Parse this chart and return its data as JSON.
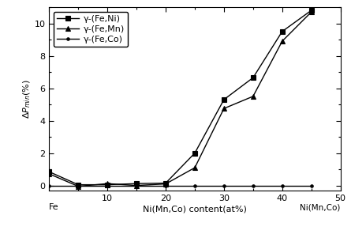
{
  "series": [
    {
      "label": "γ-(Fe,Ni)",
      "marker": "s",
      "x": [
        0,
        5,
        10,
        15,
        20,
        25,
        30,
        35,
        40,
        45
      ],
      "y": [
        0.85,
        0.05,
        0.05,
        0.12,
        0.15,
        2.0,
        5.3,
        6.65,
        9.5,
        10.8
      ]
    },
    {
      "label": "γ-(Fe,Mn)",
      "marker": "^",
      "x": [
        0,
        5,
        10,
        15,
        20,
        25,
        30,
        35,
        40,
        45
      ],
      "y": [
        0.72,
        -0.05,
        0.12,
        0.0,
        0.1,
        1.1,
        4.75,
        5.5,
        8.9,
        10.7
      ]
    },
    {
      "label": "γ-(Fe,Co)",
      "marker": ".",
      "x": [
        0,
        5,
        10,
        15,
        20,
        25,
        30,
        35,
        40,
        45
      ],
      "y": [
        0.0,
        0.0,
        0.0,
        0.0,
        0.0,
        0.0,
        0.0,
        0.0,
        0.0,
        0.0
      ]
    }
  ],
  "xlabel": "Ni(Mn,Co) content(at%)",
  "xlim": [
    0,
    50
  ],
  "ylim": [
    -0.3,
    11.0
  ],
  "xticks": [
    0,
    10,
    20,
    30,
    40,
    50
  ],
  "xticklabels": [
    "",
    "10",
    "20",
    "30",
    "40",
    "50"
  ],
  "yticks": [
    0,
    2,
    4,
    6,
    8,
    10
  ],
  "fe_label": "Fe",
  "ni_label": "Ni(Mn,Co)",
  "color": "#000000",
  "linewidth": 1.0
}
